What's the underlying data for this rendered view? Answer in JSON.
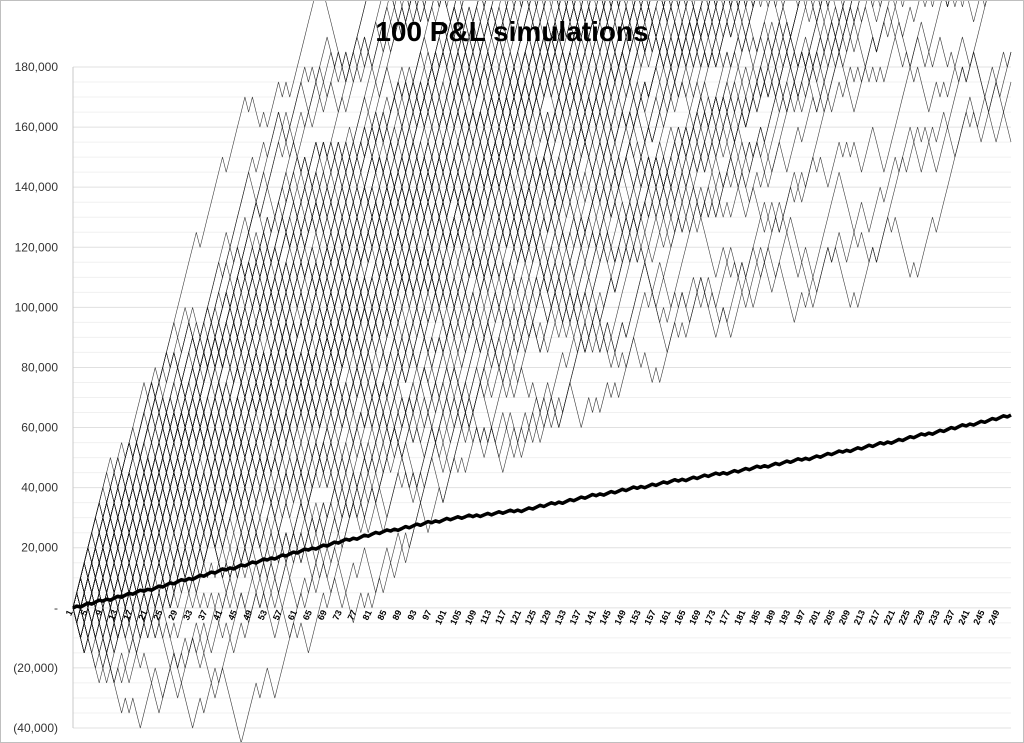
{
  "chart_data": {
    "type": "line",
    "title": "100 P&L simulations",
    "xlabel": "",
    "ylabel": "",
    "x_start": 1,
    "x_end": 252,
    "xlim": [
      1,
      252
    ],
    "ylim": [
      -40000,
      180000
    ],
    "y_tick_values": [
      -40000,
      -20000,
      0,
      20000,
      40000,
      60000,
      80000,
      100000,
      120000,
      140000,
      160000,
      180000
    ],
    "y_tick_labels": [
      "(40,000)",
      "(20,000)",
      "-",
      "20,000",
      "40,000",
      "60,000",
      "80,000",
      "100,000",
      "120,000",
      "140,000",
      "160,000",
      "180,000"
    ],
    "x_tick_labels": [
      "1",
      "5",
      "9",
      "13",
      "17",
      "21",
      "25",
      "29",
      "33",
      "37",
      "41",
      "45",
      "49",
      "53",
      "57",
      "61",
      "65",
      "69",
      "73",
      "77",
      "81",
      "85",
      "89",
      "93",
      "97",
      "101",
      "105",
      "109",
      "113",
      "117",
      "121",
      "125",
      "129",
      "133",
      "137",
      "141",
      "145",
      "149",
      "153",
      "157",
      "161",
      "165",
      "169",
      "173",
      "177",
      "181",
      "185",
      "189",
      "193",
      "197",
      "201",
      "205",
      "209",
      "213",
      "217",
      "221",
      "225",
      "229",
      "233",
      "237",
      "241",
      "245",
      "249"
    ],
    "x_tick_step": 4,
    "grid": "horizontal",
    "legend": "none",
    "step_size": 5000,
    "simulation_count": 100,
    "simulation_drift": 0.63,
    "mean_series": {
      "name": "",
      "anchors": [
        [
          1,
          0
        ],
        [
          21,
          6000
        ],
        [
          41,
          12500
        ],
        [
          61,
          18500
        ],
        [
          81,
          24500
        ],
        [
          101,
          29500
        ],
        [
          121,
          32500
        ],
        [
          141,
          37500
        ],
        [
          161,
          42000
        ],
        [
          181,
          46000
        ],
        [
          201,
          50500
        ],
        [
          221,
          55500
        ],
        [
          241,
          61000
        ],
        [
          252,
          64000
        ]
      ]
    },
    "colors": {
      "simulation_line": "#1a1a1a",
      "mean_line": "#000000",
      "gridline": "#e8e8e8",
      "axis": "#c8c8c8",
      "border": "#bfbfbf"
    }
  }
}
